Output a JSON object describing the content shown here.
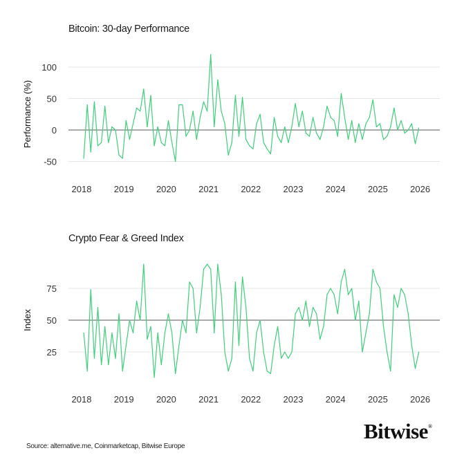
{
  "chart_data": [
    {
      "type": "line",
      "title": "Bitcoin: 30-day Performance",
      "ylabel": "Performance (%)",
      "xlabel": "",
      "ylim": [
        -60,
        125
      ],
      "yticks": [
        100,
        50,
        0,
        -50
      ],
      "xticks": [
        "2018",
        "2019",
        "2020",
        "2021",
        "2022",
        "2023",
        "2024",
        "2025",
        "2026"
      ],
      "reference_line": 0,
      "grid": true,
      "color": "#3ecf7a",
      "x_start": "2018-01",
      "frequency": "monthly",
      "values": [
        -45,
        40,
        -35,
        45,
        -25,
        -20,
        38,
        -20,
        5,
        0,
        -40,
        -45,
        15,
        -15,
        10,
        35,
        30,
        65,
        5,
        55,
        -25,
        5,
        -20,
        -25,
        15,
        -20,
        -50,
        40,
        40,
        -10,
        0,
        30,
        -15,
        20,
        45,
        30,
        120,
        5,
        80,
        30,
        10,
        -40,
        -20,
        55,
        -10,
        52,
        -15,
        -25,
        -30,
        10,
        25,
        -20,
        -30,
        -38,
        20,
        -10,
        -20,
        5,
        -20,
        5,
        42,
        5,
        30,
        -5,
        -10,
        20,
        -5,
        -15,
        5,
        38,
        20,
        15,
        -10,
        58,
        20,
        -15,
        15,
        -20,
        10,
        -15,
        10,
        20,
        48,
        5,
        10,
        -15,
        -10,
        5,
        35,
        0,
        15,
        -5,
        0,
        10,
        -22,
        3
      ]
    },
    {
      "type": "line",
      "title": "Crypto Fear & Greed Index",
      "ylabel": "Index",
      "xlabel": "",
      "ylim": [
        0,
        100
      ],
      "yticks": [
        75,
        50,
        25
      ],
      "xticks": [
        "2018",
        "2019",
        "2020",
        "2021",
        "2022",
        "2023",
        "2024",
        "2025",
        "2026"
      ],
      "reference_line": 50,
      "grid": true,
      "color": "#3ecf7a",
      "x_start": "2018-01",
      "frequency": "monthly",
      "values": [
        40,
        10,
        74,
        20,
        60,
        15,
        45,
        15,
        40,
        20,
        55,
        10,
        30,
        50,
        40,
        65,
        50,
        94,
        35,
        45,
        5,
        40,
        15,
        40,
        55,
        40,
        8,
        30,
        50,
        40,
        80,
        75,
        40,
        60,
        90,
        94,
        90,
        40,
        94,
        70,
        25,
        10,
        20,
        80,
        30,
        84,
        60,
        20,
        10,
        40,
        50,
        25,
        10,
        8,
        30,
        45,
        20,
        25,
        20,
        25,
        55,
        60,
        50,
        65,
        45,
        60,
        55,
        35,
        45,
        70,
        75,
        70,
        55,
        80,
        90,
        70,
        75,
        50,
        65,
        25,
        40,
        55,
        90,
        80,
        75,
        45,
        25,
        10,
        70,
        60,
        75,
        70,
        55,
        30,
        12,
        25
      ]
    }
  ],
  "footer": {
    "source": "Source: alternative.me, Coinmarketcap, Bitwise Europe",
    "logo": "Bitwise",
    "logo_mark": "®"
  }
}
